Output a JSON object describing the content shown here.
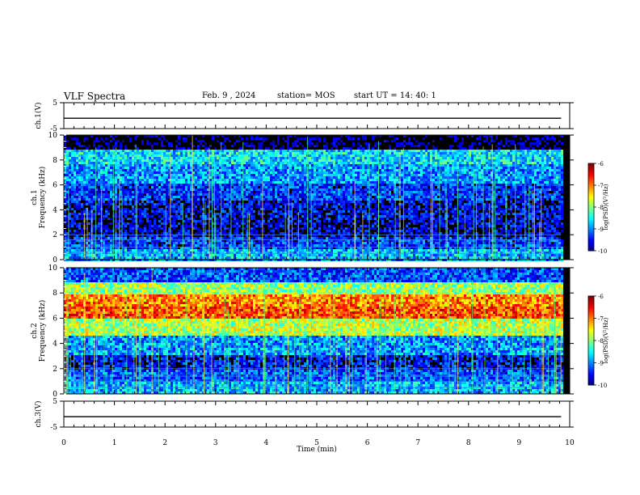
{
  "header": {
    "title": "VLF Spectra",
    "date": "Feb. 9 , 2024",
    "station": "station= MOS",
    "start": "start UT =   14: 40: 1"
  },
  "chart_data": [
    {
      "type": "line",
      "panel": "ch1-voltage",
      "ylabel": "ch.1(V)",
      "ylim": [
        -5,
        5
      ],
      "yticks": [
        "5",
        "-5"
      ],
      "x": [
        0,
        1,
        2,
        3,
        4,
        5,
        6,
        7,
        8,
        9,
        9.83
      ],
      "values": [
        -1,
        -1,
        -1,
        -1,
        -1,
        -1,
        -1,
        -1,
        -1,
        -1,
        -1
      ]
    },
    {
      "type": "heatmap",
      "panel": "ch1-spectrogram",
      "ylabel": "ch.1\nFrequency (kHz)",
      "ylim": [
        0,
        10
      ],
      "yticks": [
        "0",
        "2",
        "4",
        "6",
        "8",
        "10"
      ],
      "colorbar": {
        "label": "log(PSD)(V²/Hz)",
        "range": [
          -10,
          -6
        ],
        "ticks": [
          "-6",
          "-7",
          "-8",
          "-9",
          "-10"
        ]
      },
      "band_intensity": [
        {
          "f": 0.5,
          "level": -8.8
        },
        {
          "f": 1.5,
          "level": -9.3
        },
        {
          "f": 2.5,
          "level": -9.7
        },
        {
          "f": 4.0,
          "level": -9.6
        },
        {
          "f": 5.5,
          "level": -9.3
        },
        {
          "f": 7.0,
          "level": -8.9
        },
        {
          "f": 8.5,
          "level": -8.6
        },
        {
          "f": 9.5,
          "level": -10
        }
      ],
      "horizontal_lines_khz": [
        0.5,
        1.0,
        1.6,
        2.0
      ]
    },
    {
      "type": "heatmap",
      "panel": "ch2-spectrogram",
      "ylabel": "ch.2\nFrequency (kHz)",
      "ylim": [
        0,
        10
      ],
      "yticks": [
        "0",
        "2",
        "4",
        "6",
        "8",
        "10"
      ],
      "colorbar": {
        "label": "log(PSD)(V²/Hz)",
        "range": [
          -10,
          -6
        ],
        "ticks": [
          "-6",
          "-7",
          "-8",
          "-9",
          "-10"
        ]
      },
      "band_intensity": [
        {
          "f": 0.5,
          "level": -8.8
        },
        {
          "f": 1.5,
          "level": -9.2
        },
        {
          "f": 2.5,
          "level": -9.5
        },
        {
          "f": 4.0,
          "level": -8.9
        },
        {
          "f": 5.5,
          "level": -7.8
        },
        {
          "f": 6.5,
          "level": -6.8
        },
        {
          "f": 7.5,
          "level": -7.0
        },
        {
          "f": 8.5,
          "level": -7.9
        },
        {
          "f": 9.5,
          "level": -9.2
        }
      ],
      "horizontal_lines_khz": [
        0.5,
        1.0,
        1.4,
        2.0
      ]
    },
    {
      "type": "line",
      "panel": "ch3-voltage",
      "ylabel": "ch.3(V)",
      "ylim": [
        -5,
        5
      ],
      "yticks": [
        "5",
        "-5"
      ],
      "x": [
        0,
        1,
        2,
        3,
        4,
        5,
        6,
        7,
        8,
        9,
        9.83
      ],
      "values": [
        -1,
        -1,
        -1,
        -1,
        -1,
        -1,
        -1,
        -1,
        -1,
        -1,
        -1
      ]
    }
  ],
  "xaxis": {
    "label": "Time (min)",
    "xlim": [
      0,
      10
    ],
    "data_end": 9.83,
    "ticks": [
      "0",
      "1",
      "2",
      "3",
      "4",
      "5",
      "6",
      "7",
      "8",
      "9",
      "10"
    ]
  }
}
